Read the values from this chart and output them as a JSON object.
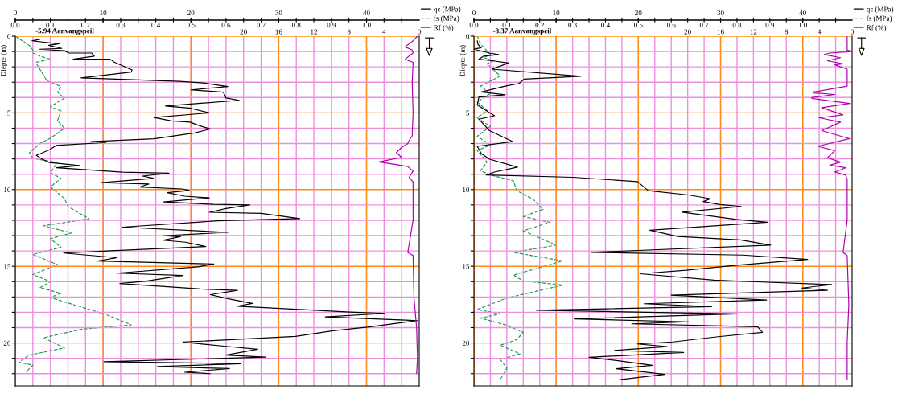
{
  "chart_data": [
    {
      "type": "line",
      "ylabel": "Diepte (m)",
      "ylim": [
        22.8,
        0
      ],
      "yticks": [
        0,
        {
          "value": 1,
          "label": null
        },
        {
          "value": 2,
          "label": null
        },
        {
          "value": 3,
          "label": null
        },
        {
          "value": 4,
          "label": null
        },
        5,
        {
          "value": 6,
          "label": null
        },
        {
          "value": 7,
          "label": null
        },
        {
          "value": 8,
          "label": null
        },
        {
          "value": 9,
          "label": null
        },
        10,
        {
          "value": 11,
          "label": null
        },
        {
          "value": 12,
          "label": null
        },
        {
          "value": 13,
          "label": null
        },
        {
          "value": 14,
          "label": null
        },
        15,
        {
          "value": 16,
          "label": null
        },
        {
          "value": 17,
          "label": null
        },
        {
          "value": 18,
          "label": null
        },
        {
          "value": 19,
          "label": null
        },
        20,
        {
          "value": 21,
          "label": null
        },
        {
          "value": 22,
          "label": null
        }
      ],
      "xlim": [
        0,
        46
      ],
      "xticks": [
        0,
        10,
        20,
        30,
        40
      ],
      "x2lim": [
        0,
        1.15
      ],
      "x2ticks": [
        {
          "value": 0,
          "label": "0.0"
        },
        {
          "value": 0.05,
          "label": null
        },
        0.1,
        {
          "value": 0.15,
          "label": null
        },
        0.2,
        {
          "value": 0.25,
          "label": null
        },
        0.3,
        {
          "value": 0.35,
          "label": null
        },
        0.4,
        {
          "value": 0.45,
          "label": null
        },
        0.5,
        {
          "value": 0.55,
          "label": null
        },
        0.6,
        {
          "value": 0.65,
          "label": null
        },
        0.7,
        {
          "value": 0.75,
          "label": null
        },
        0.8,
        {
          "value": 0.85,
          "label": null
        },
        0.9,
        {
          "value": 0.95,
          "label": null
        },
        {
          "value": 1,
          "label": "1.0"
        },
        {
          "value": 1.05,
          "label": null
        },
        {
          "value": 1.1,
          "label": null
        }
      ],
      "grid": true,
      "legend": "top right",
      "annotations": [
        "-5.94 Aanvangspeil"
      ],
      "series": [
        {
          "name": "qc (MPa)",
          "color": "#000000",
          "line_style": "solid",
          "x": [
            2.8,
            1.9,
            5.0,
            3.8,
            5.3,
            2.8,
            5.6,
            6.1,
            8.7,
            9.0,
            6.6,
            10.8,
            11.3,
            13.3,
            13.2,
            7.5,
            18.7,
            21.4,
            24.2,
            20.0,
            23.7,
            24.0,
            25.5,
            17.1,
            19.8,
            22.1,
            15.8,
            17.8,
            19.9,
            20.8,
            22.2,
            20.4,
            15.8,
            8.6,
            10.3,
            4.7,
            3.9,
            2.4,
            3.0,
            3.9,
            7.3,
            4.7,
            12.2,
            17.5,
            14.5,
            15.8,
            9.8,
            15.2,
            14.2,
            19.0,
            19.8,
            17.3,
            19.3,
            22.1,
            16.9,
            22.6,
            26.7,
            24.0,
            22.1,
            28.0,
            32.4,
            23.0,
            12.2,
            24.2,
            16.8,
            18.8,
            16.8,
            19.4,
            21.7,
            10.9,
            5.5,
            11.6,
            9.4,
            22.6,
            20.8,
            11.6,
            19.1,
            14.9,
            11.9,
            21.1,
            25.3,
            22.2,
            24.4,
            27.0,
            25.3,
            38.1,
            42.1,
            35.3,
            45.8,
            40.1,
            36.2,
            31.9,
            19.1,
            24.0,
            27.6,
            24.0,
            28.5,
            10.1,
            25.7,
            16.2,
            24.4,
            19.3,
            22.2
          ],
          "values": [
            0.2,
            0.3,
            0.5,
            0.6,
            0.8,
            0.85,
            0.95,
            1.1,
            1.1,
            1.3,
            1.5,
            1.5,
            1.7,
            2.2,
            2.34,
            2.72,
            2.94,
            3.05,
            3.28,
            3.5,
            3.65,
            4.03,
            4.18,
            4.55,
            4.68,
            5.0,
            5.3,
            5.52,
            5.6,
            5.8,
            6.05,
            6.31,
            6.69,
            6.87,
            6.93,
            7.12,
            7.4,
            7.77,
            8.0,
            8.24,
            8.43,
            8.58,
            8.86,
            8.93,
            9.12,
            9.27,
            9.55,
            9.64,
            9.83,
            9.96,
            10.06,
            10.2,
            10.43,
            10.54,
            10.8,
            10.96,
            11.0,
            11.24,
            11.48,
            11.55,
            11.89,
            12.04,
            12.45,
            12.79,
            13.01,
            13.07,
            13.3,
            13.43,
            13.71,
            13.99,
            14.14,
            14.44,
            14.66,
            14.85,
            15.04,
            15.45,
            15.6,
            15.97,
            16.12,
            16.48,
            16.57,
            16.85,
            17.13,
            17.42,
            17.6,
            17.98,
            18.07,
            18.3,
            18.54,
            18.97,
            19.2,
            19.57,
            19.94,
            20.22,
            20.41,
            20.79,
            20.92,
            21.22,
            21.35,
            21.54,
            21.67,
            21.91,
            22.0
          ]
        },
        {
          "name": "fs (MPa)",
          "color": "#1f9a55",
          "axis": "x2",
          "line_style": "dashed",
          "x": [
            0.0,
            0.02,
            0.04,
            0.05,
            0.05,
            0.07,
            0.1,
            0.06,
            0.06,
            0.09,
            0.13,
            0.12,
            0.14,
            0.1,
            0.13,
            0.12,
            0.14,
            0.1,
            0.07,
            0.04,
            0.05,
            0.12,
            0.1,
            0.13,
            0.1,
            0.14,
            0.15,
            0.21,
            0.08,
            0.16,
            0.1,
            0.13,
            0.05,
            0.12,
            0.05,
            0.1,
            0.07,
            0.13,
            0.1,
            0.26,
            0.33,
            0.19,
            0.08,
            0.14,
            0.04,
            0.01,
            0.05,
            0.03
          ],
          "values": [
            0,
            0.3,
            0.6,
            0.9,
            1.1,
            1.3,
            1.5,
            1.7,
            1.78,
            2.9,
            3.28,
            3.65,
            4.03,
            4.6,
            4.87,
            5.52,
            6.0,
            6.65,
            7.0,
            7.6,
            7.96,
            8.24,
            8.9,
            9.27,
            9.83,
            10.58,
            11.1,
            11.9,
            12.36,
            12.83,
            13.2,
            13.76,
            14.23,
            14.89,
            15.54,
            16.0,
            16.39,
            16.76,
            17.04,
            18.16,
            18.82,
            19.1,
            19.66,
            20.32,
            20.79,
            21.25,
            21.44,
            21.91
          ]
        }
      ]
    },
    {
      "type": "line",
      "ylim": [
        22.8,
        0
      ],
      "xlim": [
        46,
        0
      ],
      "xticks": [
        20,
        16,
        12,
        8,
        4,
        0
      ],
      "tick_labels": "x",
      "legend": "top right",
      "series": [
        {
          "name": "Rf (%)",
          "color": "#b000b0",
          "line_style": "solid",
          "x": [
            0.2,
            0.7,
            1.6,
            0.8,
            0.7,
            1.6,
            0.7,
            0.8,
            0.7,
            0.8,
            1.15,
            1.3,
            2.1,
            2.6,
            2.0,
            4.6,
            2.8,
            1.3,
            0.7,
            1.15,
            0.7,
            0.7,
            1.3,
            0.7,
            0.6,
            0.3,
            0.2,
            0.3
          ],
          "values": [
            0,
            0.3,
            0.7,
            0.9,
            1.1,
            1.5,
            1.7,
            3.0,
            5.0,
            6.5,
            6.8,
            7.0,
            7.3,
            7.6,
            7.9,
            8.2,
            8.35,
            8.5,
            8.8,
            9.2,
            9.5,
            12.0,
            14.1,
            14.3,
            17.0,
            19.0,
            21.0,
            22.0
          ]
        }
      ]
    },
    {
      "type": "line",
      "ylabel": "Diepte (m)",
      "ylim": [
        22.8,
        0
      ],
      "yticks": [
        0,
        {
          "value": 1,
          "label": null
        },
        {
          "value": 2,
          "label": null
        },
        {
          "value": 3,
          "label": null
        },
        {
          "value": 4,
          "label": null
        },
        5,
        {
          "value": 6,
          "label": null
        },
        {
          "value": 7,
          "label": null
        },
        {
          "value": 8,
          "label": null
        },
        {
          "value": 9,
          "label": null
        },
        10,
        {
          "value": 11,
          "label": null
        },
        {
          "value": 12,
          "label": null
        },
        {
          "value": 13,
          "label": null
        },
        {
          "value": 14,
          "label": null
        },
        15,
        {
          "value": 16,
          "label": null
        },
        {
          "value": 17,
          "label": null
        },
        {
          "value": 18,
          "label": null
        },
        {
          "value": 19,
          "label": null
        },
        20,
        {
          "value": 21,
          "label": null
        },
        {
          "value": 22,
          "label": null
        }
      ],
      "xlim": [
        0,
        46
      ],
      "xticks": [
        0,
        10,
        20,
        30,
        40
      ],
      "x2lim": [
        0,
        1.15
      ],
      "x2ticks": [
        {
          "value": 0,
          "label": "0.0"
        },
        {
          "value": 0.05,
          "label": null
        },
        0.1,
        {
          "value": 0.15,
          "label": null
        },
        0.2,
        {
          "value": 0.25,
          "label": null
        },
        0.3,
        {
          "value": 0.35,
          "label": null
        },
        0.4,
        {
          "value": 0.45,
          "label": null
        },
        0.5,
        {
          "value": 0.55,
          "label": null
        },
        0.6,
        {
          "value": 0.65,
          "label": null
        },
        0.7,
        {
          "value": 0.75,
          "label": null
        },
        0.8,
        {
          "value": 0.85,
          "label": null
        },
        0.9,
        {
          "value": 0.95,
          "label": null
        },
        {
          "value": 1,
          "label": "1.0"
        },
        {
          "value": 1.05,
          "label": null
        },
        {
          "value": 1.1,
          "label": null
        }
      ],
      "grid": true,
      "legend": "top right",
      "annotations": [
        "-8.37 Aanvangspeil"
      ],
      "series": [
        {
          "name": "qc (MPa)",
          "color": "#000000",
          "line_style": "solid",
          "x": [
            0.4,
            0.5,
            0.9,
            0.0,
            1.9,
            3.0,
            1.2,
            0.6,
            2.2,
            4.2,
            2.2,
            13.0,
            6.1,
            5.5,
            3.8,
            0.9,
            3.8,
            0.6,
            0.4,
            2.5,
            0.6,
            1.9,
            4.7,
            0.4,
            0.9,
            1.9,
            5.3,
            2.5,
            1.5,
            12.0,
            19.9,
            21.2,
            26.1,
            28.8,
            27.9,
            29.9,
            32.5,
            25.3,
            31.9,
            35.7,
            21.4,
            24.8,
            32.4,
            36.1,
            14.3,
            32.7,
            40.6,
            32.0,
            25.8,
            20.2,
            29.2,
            33.7,
            43.5,
            39.9,
            43.0,
            24.0,
            35.6,
            20.7,
            28.9,
            7.6,
            32.0,
            12.2,
            26.1,
            19.2,
            34.5,
            35.1,
            29.7,
            24.2,
            19.9,
            23.5,
            17.1,
            25.5,
            14.0,
            17.9,
            21.7,
            17.3,
            23.2,
            17.8
          ],
          "values": [
            0.3,
            0.55,
            0.75,
            0.85,
            1.1,
            1.2,
            1.3,
            1.5,
            1.6,
            1.75,
            2.15,
            2.61,
            2.8,
            3.08,
            3.26,
            3.64,
            3.82,
            3.96,
            4.48,
            5.19,
            5.41,
            6.16,
            6.87,
            7.18,
            7.65,
            8.02,
            8.54,
            8.86,
            9.05,
            9.2,
            9.48,
            10.07,
            10.35,
            10.6,
            10.78,
            10.97,
            11.1,
            11.47,
            11.94,
            12.13,
            12.65,
            13.06,
            13.28,
            13.62,
            14.09,
            14.27,
            14.55,
            14.93,
            15.26,
            15.49,
            15.9,
            16.0,
            16.19,
            16.42,
            16.57,
            16.88,
            17.2,
            17.44,
            17.63,
            17.87,
            18.1,
            18.43,
            18.62,
            18.75,
            18.94,
            19.31,
            19.59,
            19.93,
            20.06,
            20.24,
            20.49,
            20.62,
            20.93,
            21.18,
            21.46,
            21.68,
            22.05,
            22.39
          ]
        },
        {
          "name": "fs (MPa)",
          "color": "#1f9a55",
          "axis": "x2",
          "line_style": "dashed",
          "x": [
            0.01,
            0.02,
            0.05,
            0.03,
            0.06,
            0.04,
            0.08,
            0.02,
            0.05,
            0.01,
            0.04,
            0.01,
            0.05,
            0.01,
            0.05,
            0.01,
            0.04,
            0.02,
            0.05,
            0.12,
            0.13,
            0.18,
            0.21,
            0.15,
            0.23,
            0.15,
            0.19,
            0.25,
            0.12,
            0.27,
            0.12,
            0.15,
            0.27,
            0.1,
            0.01,
            0.08,
            0.02,
            0.1,
            0.15,
            0.13,
            0.08,
            0.14,
            0.08,
            0.1,
            0.08
          ],
          "values": [
            0,
            0.5,
            1.2,
            1.4,
            1.6,
            1.8,
            2.6,
            3.26,
            3.73,
            4.29,
            4.85,
            5.32,
            5.88,
            6.53,
            7.09,
            7.46,
            8.21,
            8.77,
            9.05,
            9.42,
            10.07,
            10.63,
            11.29,
            11.75,
            12.13,
            12.69,
            13.06,
            13.62,
            14.09,
            14.65,
            15.58,
            15.95,
            16.23,
            17.07,
            17.82,
            18.1,
            18.38,
            18.84,
            19.31,
            19.78,
            20.15,
            20.71,
            21.08,
            21.64,
            22.39
          ]
        }
      ]
    },
    {
      "type": "line",
      "ylim": [
        22.8,
        0
      ],
      "xlim": [
        46,
        0
      ],
      "xticks": [
        20,
        16,
        12,
        8,
        4,
        0
      ],
      "tick_labels": "x",
      "legend": "top right",
      "series": [
        {
          "name": "Rf (%)",
          "color": "#b000b0",
          "line_style": "solid",
          "x": [
            0.6,
            0.6,
            0.1,
            2.7,
            3.4,
            1.4,
            3.0,
            1.1,
            2.1,
            0.6,
            0.6,
            4.7,
            4.7,
            2.1,
            4.9,
            4.9,
            0.3,
            3.7,
            1.1,
            4.0,
            1.4,
            3.7,
            0.3,
            4.2,
            2.1,
            3.0,
            1.4,
            2.7,
            0.8,
            2.1,
            0.8,
            0.6,
            0.6,
            1.1,
            0.6,
            0.4,
            0.6,
            0.6
          ],
          "values": [
            0,
            0.9,
            1.0,
            1.1,
            1.2,
            1.4,
            1.6,
            1.8,
            1.87,
            2.15,
            3.26,
            3.64,
            3.7,
            3.8,
            4.0,
            4.06,
            4.38,
            4.66,
            5.13,
            5.32,
            5.6,
            6.16,
            6.68,
            7.18,
            7.46,
            7.93,
            8.21,
            8.4,
            8.58,
            8.86,
            9.05,
            9.33,
            12.0,
            14.1,
            14.3,
            17.5,
            20.0,
            22.4
          ]
        }
      ]
    }
  ]
}
